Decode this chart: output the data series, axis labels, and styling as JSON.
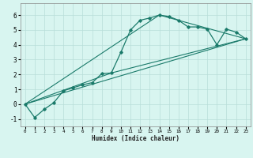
{
  "xlabel": "Humidex (Indice chaleur)",
  "background_color": "#d8f5f0",
  "grid_color": "#b8ddd8",
  "line_color": "#1a7a6a",
  "xlim": [
    -0.5,
    23.5
  ],
  "ylim": [
    -1.5,
    6.8
  ],
  "yticks": [
    -1,
    0,
    1,
    2,
    3,
    4,
    5,
    6
  ],
  "xticks": [
    0,
    1,
    2,
    3,
    4,
    5,
    6,
    7,
    8,
    9,
    10,
    11,
    12,
    13,
    14,
    15,
    16,
    17,
    18,
    19,
    20,
    21,
    22,
    23
  ],
  "curve_x": [
    0,
    1,
    2,
    3,
    4,
    5,
    6,
    7,
    8,
    9,
    10,
    11,
    12,
    13,
    14,
    15,
    16,
    17,
    18,
    19,
    20,
    21,
    22,
    23
  ],
  "curve_y": [
    0.0,
    -0.9,
    -0.35,
    0.1,
    0.9,
    1.1,
    1.3,
    1.45,
    2.05,
    2.1,
    3.5,
    5.0,
    5.65,
    5.8,
    6.0,
    5.9,
    5.65,
    5.2,
    5.2,
    5.05,
    4.0,
    5.05,
    4.85,
    4.4
  ],
  "line1_x": [
    0,
    23
  ],
  "line1_y": [
    0.0,
    4.4
  ],
  "line2_x": [
    0,
    14,
    23
  ],
  "line2_y": [
    0.0,
    6.0,
    4.4
  ],
  "line3_x": [
    0,
    9,
    23
  ],
  "line3_y": [
    0.0,
    2.1,
    4.4
  ]
}
